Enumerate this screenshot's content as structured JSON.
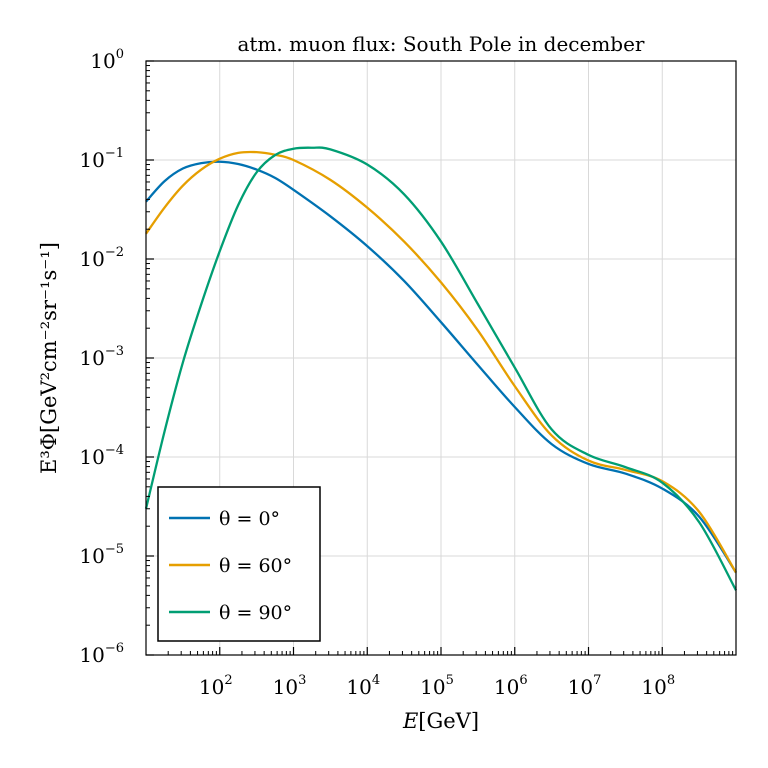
{
  "chart_data": {
    "type": "line",
    "title": "atm. muon flux: South Pole in december",
    "xlabel": {
      "italic": "E",
      "rest": "[GeV]"
    },
    "ylabel": "E³Φ[GeV²cm⁻²sr⁻¹s⁻¹]",
    "x_scale": "log",
    "y_scale": "log",
    "xlim": [
      10,
      1000000000
    ],
    "ylim": [
      1e-06,
      1
    ],
    "x_ticks": [
      {
        "value": 100,
        "base": "10",
        "exp": "2"
      },
      {
        "value": 1000,
        "base": "10",
        "exp": "3"
      },
      {
        "value": 10000,
        "base": "10",
        "exp": "4"
      },
      {
        "value": 100000,
        "base": "10",
        "exp": "5"
      },
      {
        "value": 1000000,
        "base": "10",
        "exp": "6"
      },
      {
        "value": 10000000,
        "base": "10",
        "exp": "7"
      },
      {
        "value": 100000000,
        "base": "10",
        "exp": "8"
      }
    ],
    "y_ticks": [
      {
        "value": 1,
        "base": "10",
        "exp": "0"
      },
      {
        "value": 0.1,
        "base": "10",
        "exp": "−1"
      },
      {
        "value": 0.01,
        "base": "10",
        "exp": "−2"
      },
      {
        "value": 0.001,
        "base": "10",
        "exp": "−3"
      },
      {
        "value": 0.0001,
        "base": "10",
        "exp": "−4"
      },
      {
        "value": 1e-05,
        "base": "10",
        "exp": "−5"
      },
      {
        "value": 1e-06,
        "base": "10",
        "exp": "−6"
      }
    ],
    "grid": true,
    "legend_position": "bottom-left",
    "series": [
      {
        "name": "θ = 0°",
        "color": "#0072b2",
        "x": [
          10,
          17.8,
          31.6,
          56.2,
          100,
          177.8,
          316,
          562,
          1000,
          3162,
          10000,
          31623,
          100000,
          316228,
          1000000,
          3162278,
          10000000,
          31622777,
          100000000,
          316227766,
          1000000000
        ],
        "y": [
          0.038,
          0.061,
          0.082,
          0.093,
          0.096,
          0.091,
          0.08,
          0.066,
          0.05,
          0.027,
          0.0135,
          0.006,
          0.0023,
          0.00085,
          0.00032,
          0.000135,
          8.5e-05,
          6.8e-05,
          4.8e-05,
          2.5e-05,
          6.8e-06
        ]
      },
      {
        "name": "θ = 60°",
        "color": "#e69f00",
        "x": [
          10,
          17.8,
          31.6,
          56.2,
          100,
          177.8,
          316,
          562,
          1000,
          3162,
          10000,
          31623,
          100000,
          316228,
          1000000,
          3162278,
          10000000,
          31622777,
          100000000,
          316227766,
          1000000000
        ],
        "y": [
          0.018,
          0.033,
          0.055,
          0.08,
          0.103,
          0.118,
          0.12,
          0.113,
          0.1,
          0.063,
          0.033,
          0.015,
          0.0058,
          0.0019,
          0.00052,
          0.000165,
          9.2e-05,
          7.4e-05,
          5.7e-05,
          2.8e-05,
          6.8e-06
        ]
      },
      {
        "name": "θ = 90°",
        "color": "#009e73",
        "x": [
          10,
          17.8,
          31.6,
          56.2,
          100,
          177.8,
          316,
          562,
          1000,
          1778,
          3162,
          10000,
          31623,
          100000,
          316228,
          1000000,
          3162278,
          10000000,
          31622777,
          100000000,
          316227766,
          1000000000
        ],
        "y": [
          3e-05,
          0.00018,
          0.0009,
          0.0035,
          0.012,
          0.035,
          0.075,
          0.112,
          0.13,
          0.133,
          0.128,
          0.09,
          0.045,
          0.015,
          0.0035,
          0.0008,
          0.00019,
          0.000105,
          7.9e-05,
          5.5e-05,
          2.2e-05,
          4.5e-06
        ]
      }
    ]
  }
}
